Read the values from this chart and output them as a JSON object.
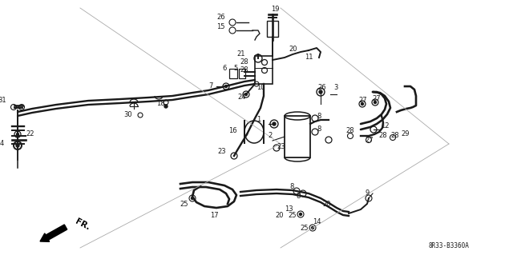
{
  "background_color": "#ffffff",
  "diagram_color": "#1a1a1a",
  "part_code": "8R33-B3360A",
  "figsize": [
    6.4,
    3.19
  ],
  "dpi": 100,
  "border_color": "#888888",
  "pipe_lw": 1.4,
  "thin_lw": 0.8,
  "label_fontsize": 6.0,
  "code_fontsize": 5.5,
  "fr_fontsize": 7.5
}
